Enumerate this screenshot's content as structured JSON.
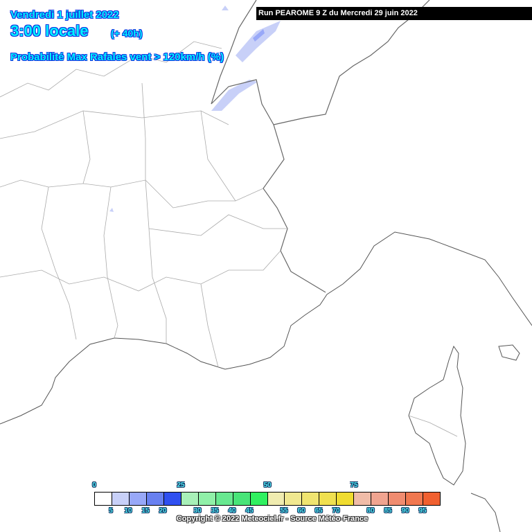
{
  "header": {
    "date": "Vendredi 1 juillet 2022",
    "hour": "3:00 locale",
    "lead": "(+ 40h)",
    "parameter": "Probabilité Max Rafales vent > 120km/h (%)",
    "run": "Run PEAROME 9 Z du Mercredi 29 juin 2022"
  },
  "legend": {
    "top_labels": [
      "0",
      "25",
      "50",
      "75"
    ],
    "bottom_labels": [
      "5",
      "10",
      "15",
      "20",
      "30",
      "35",
      "40",
      "45",
      "55",
      "60",
      "65",
      "70",
      "80",
      "85",
      "90",
      "95"
    ],
    "colors": [
      "#ffffff",
      "#c8d0f8",
      "#98a8f8",
      "#6880f0",
      "#3050f0",
      "#a8f0b8",
      "#90f0a8",
      "#68e890",
      "#48e478",
      "#30f060",
      "#f0ecb0",
      "#f0e890",
      "#f0e470",
      "#f0e050",
      "#f0dc30",
      "#f0bca8",
      "#f0a490",
      "#f08c70",
      "#f07850",
      "#f06030"
    ]
  },
  "copyright": "Copyright © 2022 Meteociel.fr - Source Météo-France"
}
